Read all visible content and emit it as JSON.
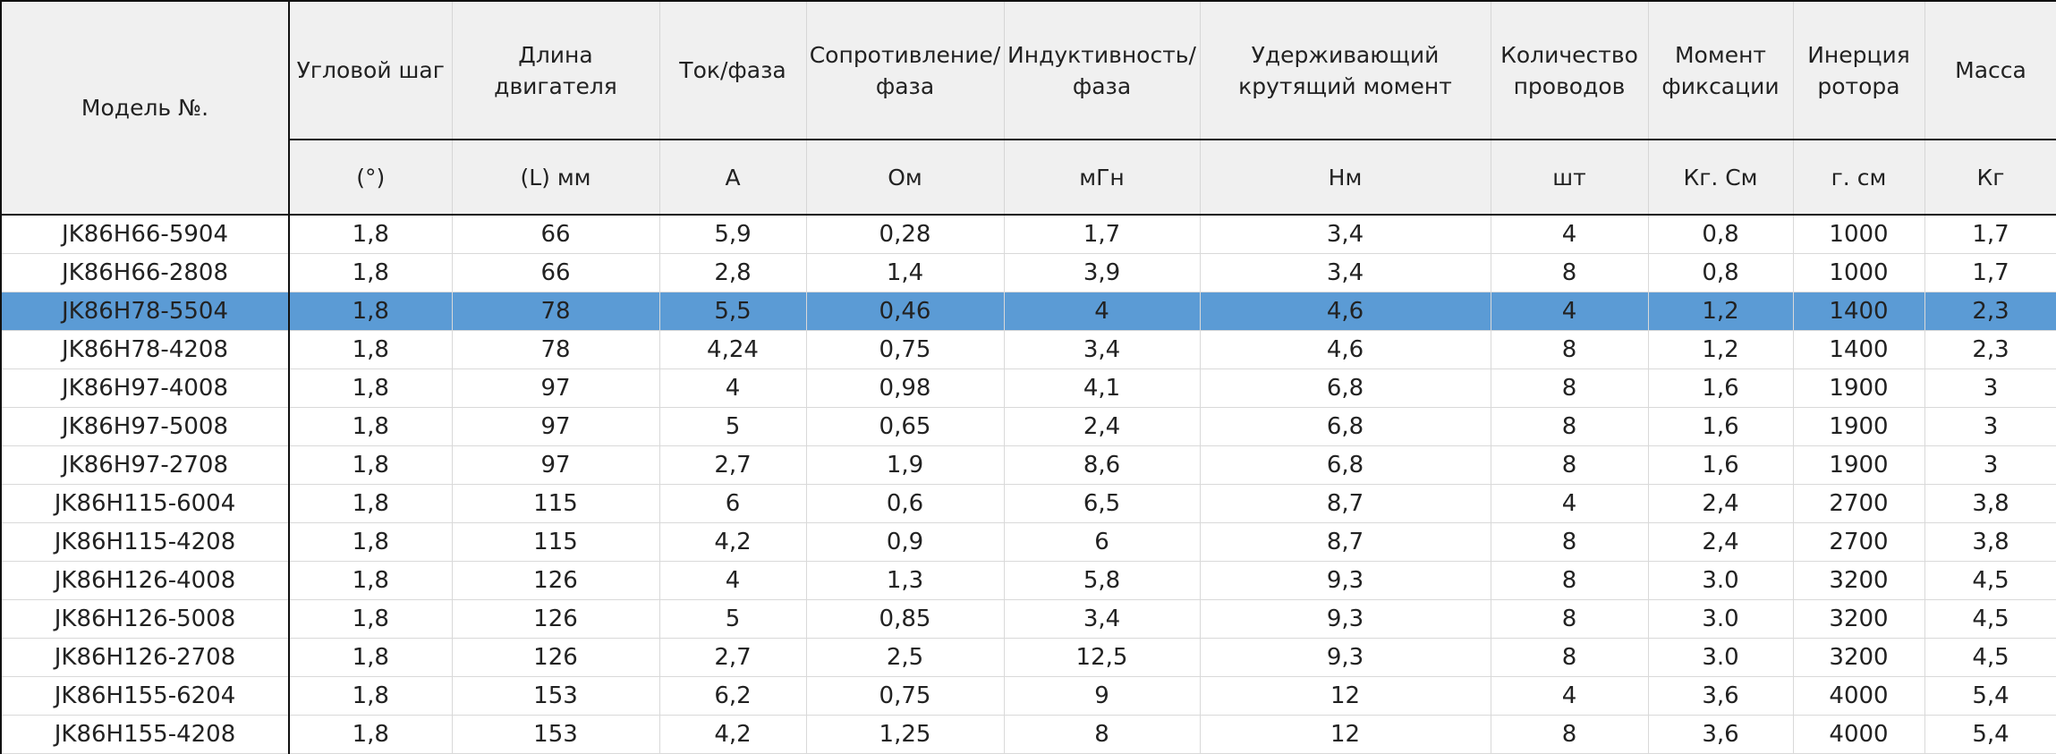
{
  "table": {
    "model_header": "Модель №.",
    "columns": [
      {
        "title": "Угловой шаг",
        "unit": "(°)"
      },
      {
        "title": "Длина двигателя",
        "unit": "(L) мм"
      },
      {
        "title": "Ток/фаза",
        "unit": "A"
      },
      {
        "title": "Сопротивление/ фаза",
        "unit": "Ом"
      },
      {
        "title": "Индуктивность/ фаза",
        "unit": "мГн"
      },
      {
        "title": "Удерживающий крутящий момент",
        "unit": "Нм"
      },
      {
        "title": "Количество проводов",
        "unit": "шт"
      },
      {
        "title": "Момент фиксации",
        "unit": "Кг. См"
      },
      {
        "title": "Инерция ротора",
        "unit": "г. см"
      },
      {
        "title": "Масса",
        "unit": "Кг"
      }
    ],
    "highlight_color": "#5b9bd5",
    "rows": [
      {
        "highlighted": false,
        "cells": [
          "JK86H66-5904",
          "1,8",
          "66",
          "5,9",
          "0,28",
          "1,7",
          "3,4",
          "4",
          "0,8",
          "1000",
          "1,7"
        ]
      },
      {
        "highlighted": false,
        "cells": [
          "JK86H66-2808",
          "1,8",
          "66",
          "2,8",
          "1,4",
          "3,9",
          "3,4",
          "8",
          "0,8",
          "1000",
          "1,7"
        ]
      },
      {
        "highlighted": true,
        "cells": [
          "JK86H78-5504",
          "1,8",
          "78",
          "5,5",
          "0,46",
          "4",
          "4,6",
          "4",
          "1,2",
          "1400",
          "2,3"
        ]
      },
      {
        "highlighted": false,
        "cells": [
          "JK86H78-4208",
          "1,8",
          "78",
          "4,24",
          "0,75",
          "3,4",
          "4,6",
          "8",
          "1,2",
          "1400",
          "2,3"
        ]
      },
      {
        "highlighted": false,
        "cells": [
          "JK86H97-4008",
          "1,8",
          "97",
          "4",
          "0,98",
          "4,1",
          "6,8",
          "8",
          "1,6",
          "1900",
          "3"
        ]
      },
      {
        "highlighted": false,
        "cells": [
          "JK86H97-5008",
          "1,8",
          "97",
          "5",
          "0,65",
          "2,4",
          "6,8",
          "8",
          "1,6",
          "1900",
          "3"
        ]
      },
      {
        "highlighted": false,
        "cells": [
          "JK86H97-2708",
          "1,8",
          "97",
          "2,7",
          "1,9",
          "8,6",
          "6,8",
          "8",
          "1,6",
          "1900",
          "3"
        ]
      },
      {
        "highlighted": false,
        "cells": [
          "JK86H115-6004",
          "1,8",
          "115",
          "6",
          "0,6",
          "6,5",
          "8,7",
          "4",
          "2,4",
          "2700",
          "3,8"
        ]
      },
      {
        "highlighted": false,
        "cells": [
          "JK86H115-4208",
          "1,8",
          "115",
          "4,2",
          "0,9",
          "6",
          "8,7",
          "8",
          "2,4",
          "2700",
          "3,8"
        ]
      },
      {
        "highlighted": false,
        "cells": [
          "JK86H126-4008",
          "1,8",
          "126",
          "4",
          "1,3",
          "5,8",
          "9,3",
          "8",
          "3.0",
          "3200",
          "4,5"
        ]
      },
      {
        "highlighted": false,
        "cells": [
          "JK86H126-5008",
          "1,8",
          "126",
          "5",
          "0,85",
          "3,4",
          "9,3",
          "8",
          "3.0",
          "3200",
          "4,5"
        ]
      },
      {
        "highlighted": false,
        "cells": [
          "JK86H126-2708",
          "1,8",
          "126",
          "2,7",
          "2,5",
          "12,5",
          "9,3",
          "8",
          "3.0",
          "3200",
          "4,5"
        ]
      },
      {
        "highlighted": false,
        "cells": [
          "JK86H155-6204",
          "1,8",
          "153",
          "6,2",
          "0,75",
          "9",
          "12",
          "4",
          "3,6",
          "4000",
          "5,4"
        ]
      },
      {
        "highlighted": false,
        "cells": [
          "JK86H155-4208",
          "1,8",
          "153",
          "4,2",
          "1,25",
          "8",
          "12",
          "8",
          "3,6",
          "4000",
          "5,4"
        ]
      }
    ]
  }
}
